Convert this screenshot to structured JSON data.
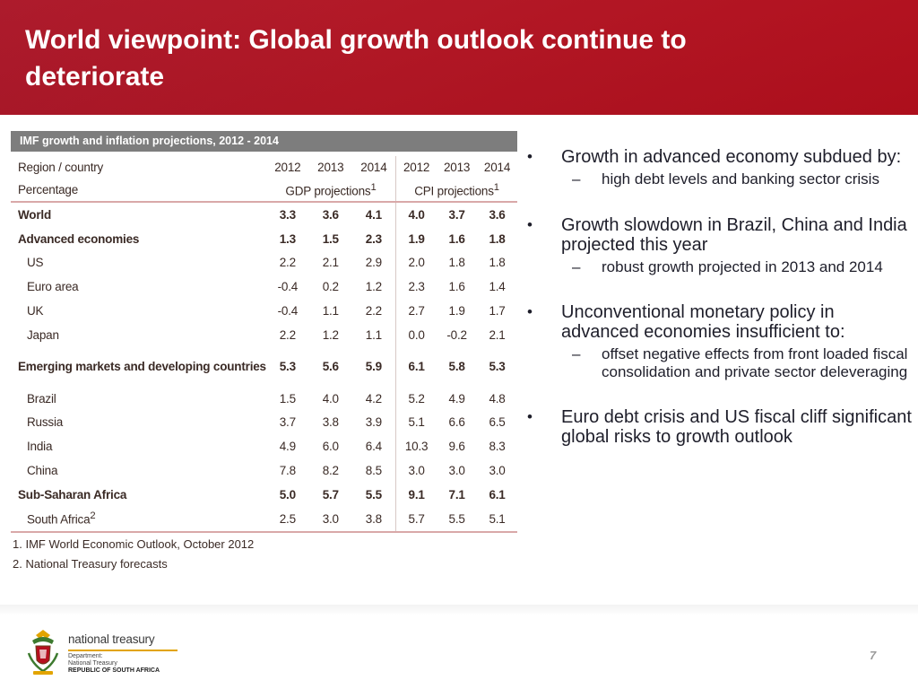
{
  "slide": {
    "title": "World viewpoint: Global growth outlook continue to deteriorate",
    "page_number": "7"
  },
  "table": {
    "caption": "IMF growth and inflation projections, 2012 - 2014",
    "header_row1": {
      "label": "Region / country",
      "years": [
        "2012",
        "2013",
        "2014",
        "2012",
        "2013",
        "2014"
      ]
    },
    "header_row2": {
      "label": "Percentage",
      "gdp": "GDP projections",
      "gdp_note": "1",
      "cpi": "CPI projections",
      "cpi_note": "1"
    },
    "rows": [
      {
        "name": "World",
        "v": [
          "3.3",
          "3.6",
          "4.1",
          "4.0",
          "3.7",
          "3.6"
        ]
      },
      {
        "name": "Advanced economies",
        "v": [
          "1.3",
          "1.5",
          "2.3",
          "1.9",
          "1.6",
          "1.8"
        ]
      },
      {
        "name": "US",
        "v": [
          "2.2",
          "2.1",
          "2.9",
          "2.0",
          "1.8",
          "1.8"
        ]
      },
      {
        "name": "Euro area",
        "v": [
          "-0.4",
          "0.2",
          "1.2",
          "2.3",
          "1.6",
          "1.4"
        ]
      },
      {
        "name": "UK",
        "v": [
          "-0.4",
          "1.1",
          "2.2",
          "2.7",
          "1.9",
          "1.7"
        ]
      },
      {
        "name": "Japan",
        "v": [
          "2.2",
          "1.2",
          "1.1",
          "0.0",
          "-0.2",
          "2.1"
        ]
      },
      {
        "name": "Emerging markets and developing countries",
        "v": [
          "5.3",
          "5.6",
          "5.9",
          "6.1",
          "5.8",
          "5.3"
        ]
      },
      {
        "name": "Brazil",
        "v": [
          "1.5",
          "4.0",
          "4.2",
          "5.2",
          "4.9",
          "4.8"
        ]
      },
      {
        "name": "Russia",
        "v": [
          "3.7",
          "3.8",
          "3.9",
          "5.1",
          "6.6",
          "6.5"
        ]
      },
      {
        "name": "India",
        "v": [
          "4.9",
          "6.0",
          "6.4",
          "10.3",
          "9.6",
          "8.3"
        ]
      },
      {
        "name": "China",
        "v": [
          "7.8",
          "8.2",
          "8.5",
          "3.0",
          "3.0",
          "3.0"
        ]
      },
      {
        "name": "Sub-Saharan Africa",
        "v": [
          "5.0",
          "5.7",
          "5.5",
          "9.1",
          "7.1",
          "6.1"
        ]
      },
      {
        "name": "South Africa",
        "name_note": "2",
        "v": [
          "2.5",
          "3.0",
          "3.8",
          "5.7",
          "5.5",
          "5.1"
        ]
      }
    ],
    "notes": [
      "1. IMF World Economic Outlook, October 2012",
      "2. National Treasury forecasts"
    ]
  },
  "bullets": [
    {
      "text": "Growth in advanced economy subdued by:",
      "sub": [
        "high debt levels and banking sector crisis"
      ]
    },
    {
      "text": "Growth slowdown in Brazil, China and India projected  this year",
      "sub": [
        "robust growth projected in 2013 and 2014"
      ]
    },
    {
      "text": "Unconventional monetary policy in advanced economies insufficient to:",
      "sub": [
        "offset negative effects from front loaded fiscal consolidation and private sector deleveraging"
      ]
    },
    {
      "text": "Euro debt crisis and US fiscal cliff significant global risks to growth outlook",
      "sub": []
    }
  ],
  "bullet_symbol": "•",
  "sub_symbol": "–",
  "logo": {
    "name": "national treasury",
    "dept_line1": "Department:",
    "dept_line2": "National Treasury",
    "country": "REPUBLIC OF SOUTH AFRICA",
    "icon": "coat-of-arms-icon"
  },
  "colors": {
    "header_red": "#b5101f",
    "caption_gray": "#7d7d7d",
    "logo_gold": "#e2a400"
  }
}
